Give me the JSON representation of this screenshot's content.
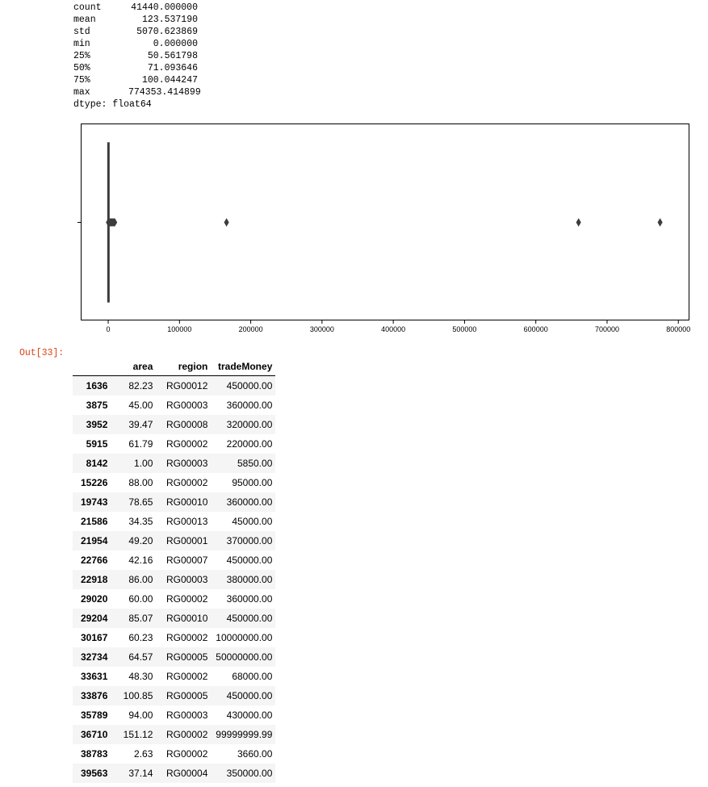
{
  "describe": {
    "rows": [
      {
        "key": "count",
        "value": "41440.000000"
      },
      {
        "key": "mean",
        "value": "123.537190"
      },
      {
        "key": "std",
        "value": "5070.623869"
      },
      {
        "key": "min",
        "value": "0.000000"
      },
      {
        "key": "25%",
        "value": "50.561798"
      },
      {
        "key": "50%",
        "value": "71.093646"
      },
      {
        "key": "75%",
        "value": "100.044247"
      },
      {
        "key": "max",
        "value": "774353.414899"
      }
    ],
    "dtype_line": "dtype: float64"
  },
  "chart_data": {
    "type": "boxplot",
    "orientation": "horizontal",
    "x_ticks": [
      "0",
      "100000",
      "200000",
      "300000",
      "400000",
      "500000",
      "600000",
      "700000",
      "800000"
    ],
    "xlim": [
      -38000,
      815000
    ],
    "box": {
      "q1": 50.561798,
      "median": 71.093646,
      "q3": 100.044247,
      "whisker_low": 0.0,
      "whisker_high": 174.0
    },
    "outliers": [
      200,
      800,
      1500,
      2500,
      3500,
      4500,
      5500,
      6500,
      7500,
      8500,
      9200,
      166000,
      660000,
      774353.414899
    ],
    "colors": {
      "frame": "#000000",
      "box": "#3d3d3d"
    }
  },
  "output_prompt": "Out[33]:",
  "table": {
    "columns": [
      "area",
      "region",
      "tradeMoney"
    ],
    "rows": [
      {
        "index": "1636",
        "area": "82.23",
        "region": "RG00012",
        "tradeMoney": "450000.00"
      },
      {
        "index": "3875",
        "area": "45.00",
        "region": "RG00003",
        "tradeMoney": "360000.00"
      },
      {
        "index": "3952",
        "area": "39.47",
        "region": "RG00008",
        "tradeMoney": "320000.00"
      },
      {
        "index": "5915",
        "area": "61.79",
        "region": "RG00002",
        "tradeMoney": "220000.00"
      },
      {
        "index": "8142",
        "area": "1.00",
        "region": "RG00003",
        "tradeMoney": "5850.00"
      },
      {
        "index": "15226",
        "area": "88.00",
        "region": "RG00002",
        "tradeMoney": "95000.00"
      },
      {
        "index": "19743",
        "area": "78.65",
        "region": "RG00010",
        "tradeMoney": "360000.00"
      },
      {
        "index": "21586",
        "area": "34.35",
        "region": "RG00013",
        "tradeMoney": "45000.00"
      },
      {
        "index": "21954",
        "area": "49.20",
        "region": "RG00001",
        "tradeMoney": "370000.00"
      },
      {
        "index": "22766",
        "area": "42.16",
        "region": "RG00007",
        "tradeMoney": "450000.00"
      },
      {
        "index": "22918",
        "area": "86.00",
        "region": "RG00003",
        "tradeMoney": "380000.00"
      },
      {
        "index": "29020",
        "area": "60.00",
        "region": "RG00002",
        "tradeMoney": "360000.00"
      },
      {
        "index": "29204",
        "area": "85.07",
        "region": "RG00010",
        "tradeMoney": "450000.00"
      },
      {
        "index": "30167",
        "area": "60.23",
        "region": "RG00002",
        "tradeMoney": "10000000.00"
      },
      {
        "index": "32734",
        "area": "64.57",
        "region": "RG00005",
        "tradeMoney": "50000000.00"
      },
      {
        "index": "33631",
        "area": "48.30",
        "region": "RG00002",
        "tradeMoney": "68000.00"
      },
      {
        "index": "33876",
        "area": "100.85",
        "region": "RG00005",
        "tradeMoney": "450000.00"
      },
      {
        "index": "35789",
        "area": "94.00",
        "region": "RG00003",
        "tradeMoney": "430000.00"
      },
      {
        "index": "36710",
        "area": "151.12",
        "region": "RG00002",
        "tradeMoney": "99999999.99"
      },
      {
        "index": "38783",
        "area": "2.63",
        "region": "RG00002",
        "tradeMoney": "3660.00"
      },
      {
        "index": "39563",
        "area": "37.14",
        "region": "RG00004",
        "tradeMoney": "350000.00"
      }
    ]
  }
}
